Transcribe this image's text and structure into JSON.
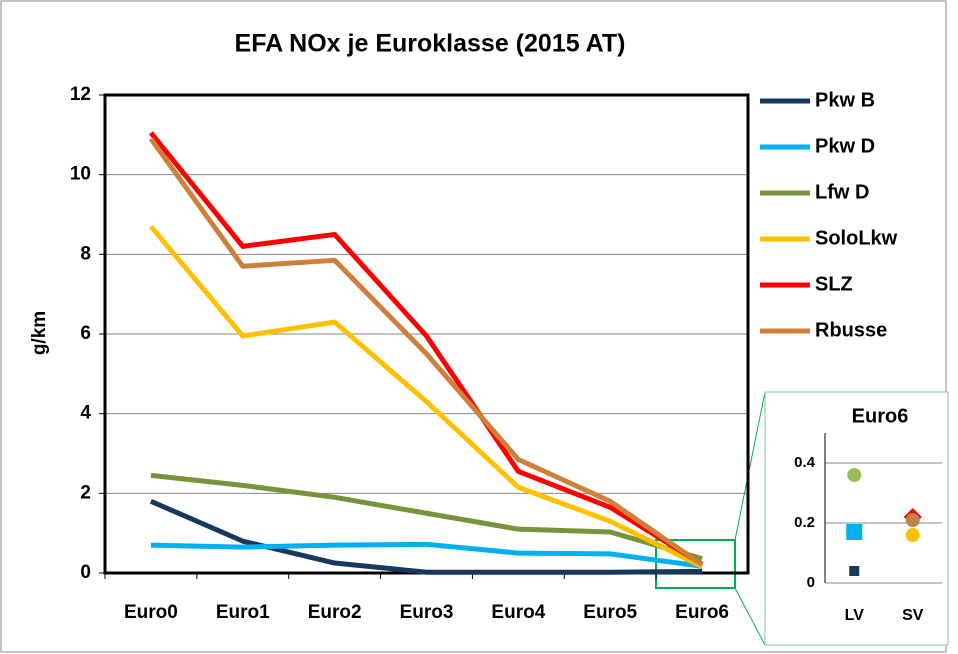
{
  "chart_data": [
    {
      "type": "line",
      "title": "EFA NOx je Euroklasse (2015 AT)",
      "y_label": "g/km",
      "categories": [
        "Euro0",
        "Euro1",
        "Euro2",
        "Euro3",
        "Euro4",
        "Euro5",
        "Euro6"
      ],
      "ylim": [
        0,
        12
      ],
      "yticks": [
        0,
        2,
        4,
        6,
        8,
        10,
        12
      ],
      "grid": true,
      "legend": "right",
      "series": [
        {
          "name": "Pkw B",
          "color": "#17375e",
          "values": [
            1.8,
            0.8,
            0.25,
            0.02,
            0.02,
            0.02,
            0.04
          ]
        },
        {
          "name": "Pkw D",
          "color": "#00b0f0",
          "values": [
            0.7,
            0.65,
            0.7,
            0.72,
            0.5,
            0.48,
            0.17
          ]
        },
        {
          "name": "Lfw D",
          "color": "#77933c",
          "values": [
            2.45,
            2.2,
            1.9,
            1.5,
            1.1,
            1.03,
            0.36
          ]
        },
        {
          "name": "SoloLkw",
          "color": "#ffc000",
          "values": [
            8.7,
            5.95,
            6.3,
            4.3,
            2.15,
            1.3,
            0.16
          ]
        },
        {
          "name": "SLZ",
          "color": "#ff0000",
          "values": [
            11.05,
            8.2,
            8.5,
            5.95,
            2.55,
            1.65,
            0.22
          ]
        },
        {
          "name": "Rbusse",
          "color": "#d07f3a",
          "values": [
            10.9,
            7.7,
            7.85,
            5.5,
            2.85,
            1.8,
            0.21
          ]
        }
      ]
    },
    {
      "type": "scatter",
      "title": "Euro6",
      "categories": [
        "LV",
        "SV"
      ],
      "ylim": [
        0,
        0.5
      ],
      "yticks": [
        0,
        0.2,
        0.4
      ],
      "grid": true,
      "series": [
        {
          "color": "#17375e",
          "marker": "square",
          "values": [
            0.04,
            null
          ]
        },
        {
          "color": "#00b0f0",
          "marker": "square",
          "values": [
            0.17,
            null
          ]
        },
        {
          "color": "#9bbb59",
          "marker": "circle",
          "values": [
            0.36,
            null
          ]
        },
        {
          "color": "#ffc000",
          "marker": "circle",
          "values": [
            null,
            0.16
          ]
        },
        {
          "color": "#ff0000",
          "marker": "diamond",
          "values": [
            null,
            0.22
          ]
        },
        {
          "color": "#c0824a",
          "marker": "circle",
          "values": [
            null,
            0.21
          ]
        }
      ]
    }
  ]
}
